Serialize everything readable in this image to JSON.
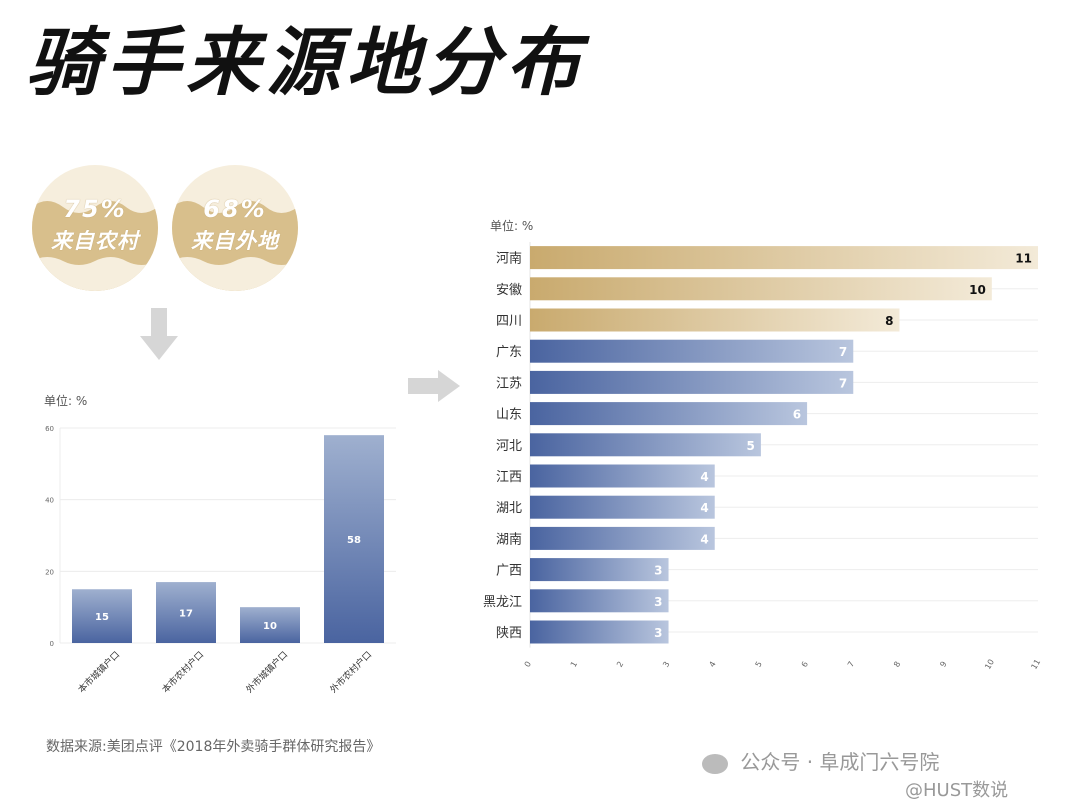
{
  "title": "骑手来源地分布",
  "badges": [
    {
      "pct": "75%",
      "label": "来自农村"
    },
    {
      "pct": "68%",
      "label": "来自外地"
    }
  ],
  "colors": {
    "gold": "#c9aa6e",
    "blue": "#4a64a0",
    "badge_bg": "#f6eedd"
  },
  "source": "数据来源:美团点评《2018年外卖骑手群体研究报告》",
  "watermark": {
    "line1": "公众号 · 阜成门六号院",
    "line2": "@HUST数说"
  },
  "chart_data": [
    {
      "type": "bar",
      "unit_label": "单位: %",
      "categories": [
        "本市城镇户口",
        "本市农村户口",
        "外市城镇户口",
        "外市农村户口"
      ],
      "values": [
        15,
        17,
        10,
        58
      ],
      "ylim": [
        0,
        60
      ],
      "yticks": [
        0,
        20,
        40,
        60
      ]
    },
    {
      "type": "bar",
      "orientation": "horizontal",
      "unit_label": "单位: %",
      "categories": [
        "河南",
        "安徽",
        "四川",
        "广东",
        "江苏",
        "山东",
        "河北",
        "江西",
        "湖北",
        "湖南",
        "广西",
        "黑龙江",
        "陕西"
      ],
      "values": [
        11,
        10,
        8,
        7,
        7,
        6,
        5,
        4,
        4,
        4,
        3,
        3,
        3
      ],
      "highlight_top": 3,
      "xlim": [
        0,
        11
      ],
      "xticks": [
        0,
        1,
        2,
        3,
        4,
        5,
        6,
        7,
        8,
        9,
        10,
        11
      ]
    }
  ]
}
